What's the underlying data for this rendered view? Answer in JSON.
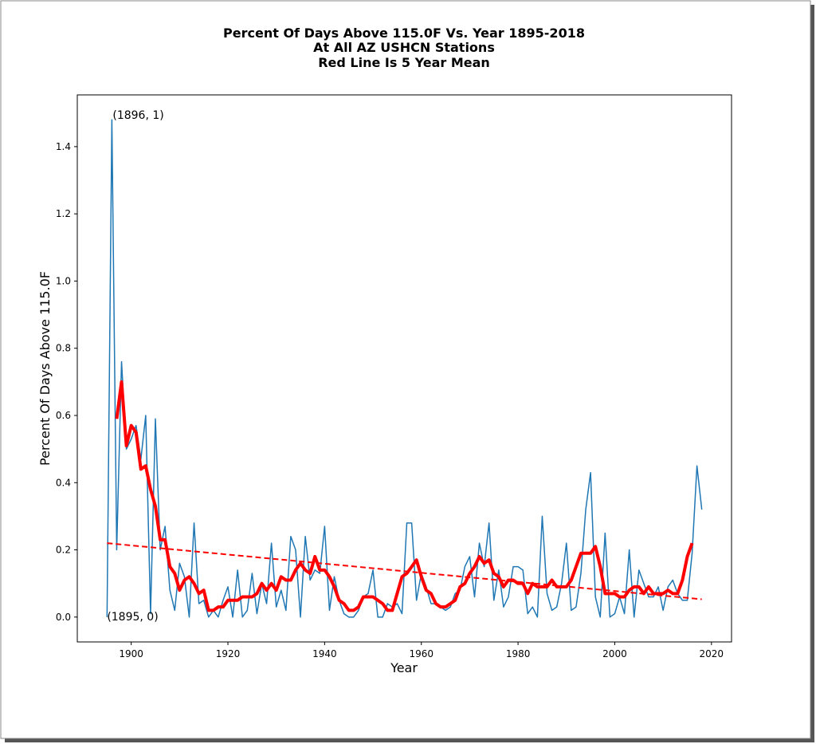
{
  "chart_data": {
    "type": "line",
    "title": [
      "Percent Of Days Above 115.0F Vs. Year 1895-2018",
      "At All AZ USHCN Stations",
      "Red Line Is 5 Year Mean"
    ],
    "xlabel": "Year",
    "ylabel": "Percent Of Days Above 115.0F",
    "x": [
      1895,
      1896,
      1897,
      1898,
      1899,
      1900,
      1901,
      1902,
      1903,
      1904,
      1905,
      1906,
      1907,
      1908,
      1909,
      1910,
      1911,
      1912,
      1913,
      1914,
      1915,
      1916,
      1917,
      1918,
      1919,
      1920,
      1921,
      1922,
      1923,
      1924,
      1925,
      1926,
      1927,
      1928,
      1929,
      1930,
      1931,
      1932,
      1933,
      1934,
      1935,
      1936,
      1937,
      1938,
      1939,
      1940,
      1941,
      1942,
      1943,
      1944,
      1945,
      1946,
      1947,
      1948,
      1949,
      1950,
      1951,
      1952,
      1953,
      1954,
      1955,
      1956,
      1957,
      1958,
      1959,
      1960,
      1961,
      1962,
      1963,
      1964,
      1965,
      1966,
      1967,
      1968,
      1969,
      1970,
      1971,
      1972,
      1973,
      1974,
      1975,
      1976,
      1977,
      1978,
      1979,
      1980,
      1981,
      1982,
      1983,
      1984,
      1985,
      1986,
      1987,
      1988,
      1989,
      1990,
      1991,
      1992,
      1993,
      1994,
      1995,
      1996,
      1997,
      1998,
      1999,
      2000,
      2001,
      2002,
      2003,
      2004,
      2005,
      2006,
      2007,
      2008,
      2009,
      2010,
      2011,
      2012,
      2013,
      2014,
      2015,
      2016,
      2017,
      2018
    ],
    "series": [
      {
        "color": "#1f77b4",
        "width": 1.5,
        "values": [
          0,
          1.48,
          0.2,
          0.76,
          0.5,
          0.53,
          0.57,
          0.47,
          0.6,
          0.01,
          0.59,
          0.2,
          0.27,
          0.08,
          0.02,
          0.16,
          0.12,
          0.0,
          0.28,
          0.04,
          0.05,
          0.0,
          0.02,
          0.0,
          0.05,
          0.09,
          0.0,
          0.14,
          0.0,
          0.02,
          0.13,
          0.01,
          0.1,
          0.04,
          0.22,
          0.03,
          0.08,
          0.02,
          0.24,
          0.2,
          0.0,
          0.24,
          0.11,
          0.14,
          0.13,
          0.27,
          0.02,
          0.12,
          0.05,
          0.01,
          0.0,
          0.0,
          0.02,
          0.06,
          0.07,
          0.14,
          0.0,
          0.0,
          0.04,
          0.03,
          0.04,
          0.01,
          0.28,
          0.28,
          0.05,
          0.13,
          0.09,
          0.04,
          0.04,
          0.03,
          0.02,
          0.03,
          0.07,
          0.08,
          0.15,
          0.18,
          0.06,
          0.22,
          0.15,
          0.28,
          0.05,
          0.14,
          0.03,
          0.06,
          0.15,
          0.15,
          0.14,
          0.01,
          0.03,
          0.0,
          0.3,
          0.07,
          0.02,
          0.03,
          0.1,
          0.22,
          0.02,
          0.03,
          0.13,
          0.32,
          0.43,
          0.06,
          0.0,
          0.25,
          0.0,
          0.01,
          0.06,
          0.01,
          0.2,
          0.0,
          0.14,
          0.1,
          0.06,
          0.06,
          0.09,
          0.02,
          0.09,
          0.11,
          0.07,
          0.05,
          0.05,
          0.19,
          0.45,
          0.32
        ]
      },
      {
        "color": "#ff0000",
        "width": 4,
        "values": [
          null,
          null,
          0.59,
          0.7,
          0.51,
          0.57,
          0.55,
          0.44,
          0.45,
          0.38,
          0.33,
          0.23,
          0.23,
          0.15,
          0.13,
          0.08,
          0.11,
          0.12,
          0.1,
          0.07,
          0.08,
          0.02,
          0.02,
          0.03,
          0.03,
          0.05,
          0.05,
          0.05,
          0.06,
          0.06,
          0.06,
          0.07,
          0.1,
          0.08,
          0.1,
          0.08,
          0.12,
          0.11,
          0.11,
          0.14,
          0.16,
          0.14,
          0.13,
          0.18,
          0.14,
          0.14,
          0.12,
          0.09,
          0.05,
          0.04,
          0.02,
          0.02,
          0.03,
          0.06,
          0.06,
          0.06,
          0.05,
          0.04,
          0.02,
          0.02,
          0.07,
          0.12,
          0.13,
          0.15,
          0.17,
          0.12,
          0.08,
          0.07,
          0.04,
          0.03,
          0.03,
          0.04,
          0.05,
          0.09,
          0.1,
          0.13,
          0.15,
          0.18,
          0.16,
          0.17,
          0.13,
          0.12,
          0.09,
          0.11,
          0.11,
          0.1,
          0.1,
          0.07,
          0.1,
          0.09,
          0.09,
          0.09,
          0.11,
          0.09,
          0.09,
          0.09,
          0.11,
          0.15,
          0.19,
          0.19,
          0.19,
          0.21,
          0.15,
          0.07,
          0.07,
          0.07,
          0.06,
          0.06,
          0.08,
          0.09,
          0.09,
          0.07,
          0.09,
          0.07,
          0.07,
          0.07,
          0.08,
          0.07,
          0.07,
          0.11,
          0.18,
          0.22,
          null,
          null
        ]
      },
      {
        "color": "#ff0000",
        "width": 2,
        "dashed": true,
        "x": [
          1895,
          2018
        ],
        "values": [
          0.22,
          0.053
        ]
      }
    ],
    "annotations": [
      "(1896, 1)",
      "(1895, 0)"
    ],
    "xlim": [
      1888.85,
      2024.15
    ],
    "ylim": [
      -0.074,
      1.554
    ],
    "xticks": [
      1900,
      1920,
      1940,
      1960,
      1980,
      2000,
      2020
    ],
    "yticks": [
      {
        "value": 0,
        "label": "0.0"
      },
      0.2,
      0.4,
      0.6,
      0.8,
      {
        "value": 1,
        "label": "1.0"
      },
      1.2,
      1.4
    ]
  }
}
